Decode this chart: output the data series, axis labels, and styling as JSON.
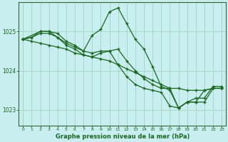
{
  "title": "Graphe pression niveau de la mer (hPa)",
  "bg_color": "#c8eef0",
  "grid_color": "#a0d8c8",
  "line_color": "#1a6620",
  "xlim": [
    -0.5,
    23.5
  ],
  "ylim": [
    1022.6,
    1025.75
  ],
  "yticks": [
    1023,
    1024,
    1025
  ],
  "xticks": [
    0,
    1,
    2,
    3,
    4,
    5,
    6,
    7,
    8,
    9,
    10,
    11,
    12,
    13,
    14,
    15,
    16,
    17,
    18,
    19,
    20,
    21,
    22,
    23
  ],
  "series": [
    {
      "x": [
        0,
        1,
        2,
        3,
        4,
        5,
        6,
        7,
        8,
        9,
        10,
        11,
        12,
        13,
        14,
        15,
        16,
        17,
        18,
        19,
        20,
        21,
        22,
        23
      ],
      "y": [
        1024.8,
        1024.85,
        1024.95,
        1024.95,
        1024.85,
        1024.7,
        1024.6,
        1024.5,
        1024.9,
        1025.05,
        1025.5,
        1025.6,
        1025.2,
        1024.8,
        1024.55,
        1024.1,
        1023.6,
        1023.5,
        1023.05,
        1023.2,
        1023.2,
        1023.2,
        1023.55,
        1023.55
      ]
    },
    {
      "x": [
        0,
        1,
        2,
        3,
        4,
        5,
        6,
        7,
        8,
        9,
        10,
        11,
        12,
        13,
        14,
        15,
        16,
        17,
        18,
        19,
        20,
        21,
        22,
        23
      ],
      "y": [
        1024.8,
        1024.75,
        1024.7,
        1024.65,
        1024.6,
        1024.55,
        1024.45,
        1024.4,
        1024.35,
        1024.3,
        1024.25,
        1024.15,
        1024.05,
        1023.95,
        1023.85,
        1023.75,
        1023.65,
        1023.55,
        1023.55,
        1023.5,
        1023.5,
        1023.5,
        1023.55,
        1023.55
      ]
    },
    {
      "x": [
        0,
        1,
        2,
        3,
        4,
        5,
        6,
        7,
        8,
        9,
        10,
        11,
        12,
        13,
        14,
        15,
        16,
        17,
        18,
        19,
        20,
        21,
        22,
        23
      ],
      "y": [
        1024.8,
        1024.85,
        1025.0,
        1025.0,
        1024.95,
        1024.75,
        1024.65,
        1024.5,
        1024.45,
        1024.5,
        1024.5,
        1024.15,
        1023.85,
        1023.65,
        1023.55,
        1023.5,
        1023.45,
        1023.1,
        1023.05,
        1023.2,
        1023.2,
        1023.5,
        1023.55,
        1023.55
      ]
    },
    {
      "x": [
        0,
        2,
        3,
        4,
        5,
        6,
        7,
        8,
        9,
        10,
        11,
        12,
        13,
        14,
        15,
        16,
        17,
        18,
        19,
        20,
        21,
        22,
        23
      ],
      "y": [
        1024.8,
        1025.0,
        1025.0,
        1024.85,
        1024.65,
        1024.55,
        1024.4,
        1024.35,
        1024.45,
        1024.5,
        1024.55,
        1024.25,
        1024.0,
        1023.8,
        1023.65,
        1023.55,
        1023.55,
        1023.05,
        1023.2,
        1023.3,
        1023.3,
        1023.6,
        1023.6
      ]
    }
  ]
}
